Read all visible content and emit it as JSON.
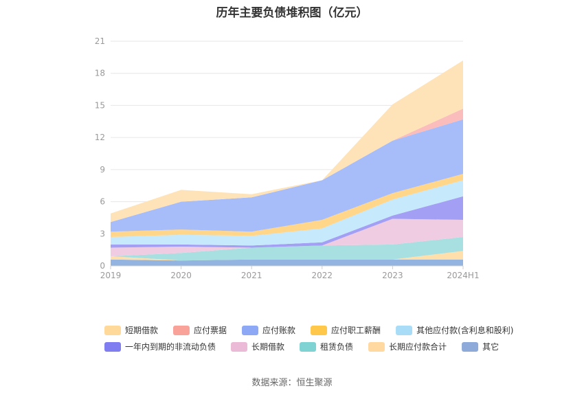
{
  "chart_data": {
    "type": "area",
    "stacked": true,
    "title": "历年主要负债堆积图（亿元）",
    "xlabel": "",
    "ylabel": "",
    "categories": [
      "2019",
      "2020",
      "2021",
      "2022",
      "2023",
      "2024H1"
    ],
    "ylim": [
      0,
      21
    ],
    "yticks": [
      0,
      3,
      6,
      9,
      12,
      15,
      18,
      21
    ],
    "grid": true,
    "legend_position": "bottom",
    "series": [
      {
        "name": "其它",
        "color": "#93b4e0",
        "values": [
          0.6,
          0.5,
          0.6,
          0.6,
          0.6,
          0.6
        ]
      },
      {
        "name": "长期应付款合计",
        "color": "#ffe0ac",
        "values": [
          0.3,
          0.0,
          0.0,
          0.0,
          0.0,
          0.8
        ]
      },
      {
        "name": "租赁负债",
        "color": "#a8dfe0",
        "values": [
          0.0,
          0.7,
          1.1,
          1.3,
          1.4,
          1.3
        ]
      },
      {
        "name": "长期借款",
        "color": "#f0cce2",
        "values": [
          0.8,
          0.6,
          0.0,
          0.0,
          2.4,
          1.6
        ]
      },
      {
        "name": "一年内到期的非流动负债",
        "color": "#a29ff5",
        "values": [
          0.3,
          0.2,
          0.2,
          0.3,
          0.3,
          2.2
        ]
      },
      {
        "name": "其他应付款(含利息和股利)",
        "color": "#c6e9fb",
        "values": [
          0.7,
          0.9,
          0.9,
          1.3,
          1.5,
          1.5
        ]
      },
      {
        "name": "应付职工薪酬",
        "color": "#ffd68a",
        "values": [
          0.5,
          0.5,
          0.4,
          0.8,
          0.6,
          0.6
        ]
      },
      {
        "name": "应付账款",
        "color": "#a7bdf9",
        "values": [
          0.9,
          2.6,
          3.2,
          3.7,
          4.9,
          5.1
        ]
      },
      {
        "name": "应付票据",
        "color": "#fbbcbc",
        "values": [
          0.0,
          0.0,
          0.0,
          0.0,
          0.0,
          1.0
        ]
      },
      {
        "name": "短期借款",
        "color": "#ffe3b8",
        "values": [
          0.8,
          1.1,
          0.3,
          0.0,
          3.4,
          4.5
        ]
      }
    ],
    "legend_order": [
      "短期借款",
      "应付票据",
      "应付账款",
      "应付职工薪酬",
      "其他应付款(含利息和股利)",
      "一年内到期的非流动负债",
      "长期借款",
      "租赁负债",
      "长期应付款合计",
      "其它"
    ],
    "legend_swatch_colors": {
      "短期借款": "#ffd99a",
      "应付票据": "#f9a29a",
      "应付账款": "#8da8f5",
      "应付职工薪酬": "#ffc84a",
      "其他应付款(含利息和股利)": "#a9ddf7",
      "一年内到期的非流动负债": "#7f7df0",
      "长期借款": "#ebbad6",
      "租赁负债": "#7fd3d3",
      "长期应付款合计": "#ffd9a0",
      "其它": "#8daad8"
    }
  },
  "source_text": "数据来源：恒生聚源"
}
